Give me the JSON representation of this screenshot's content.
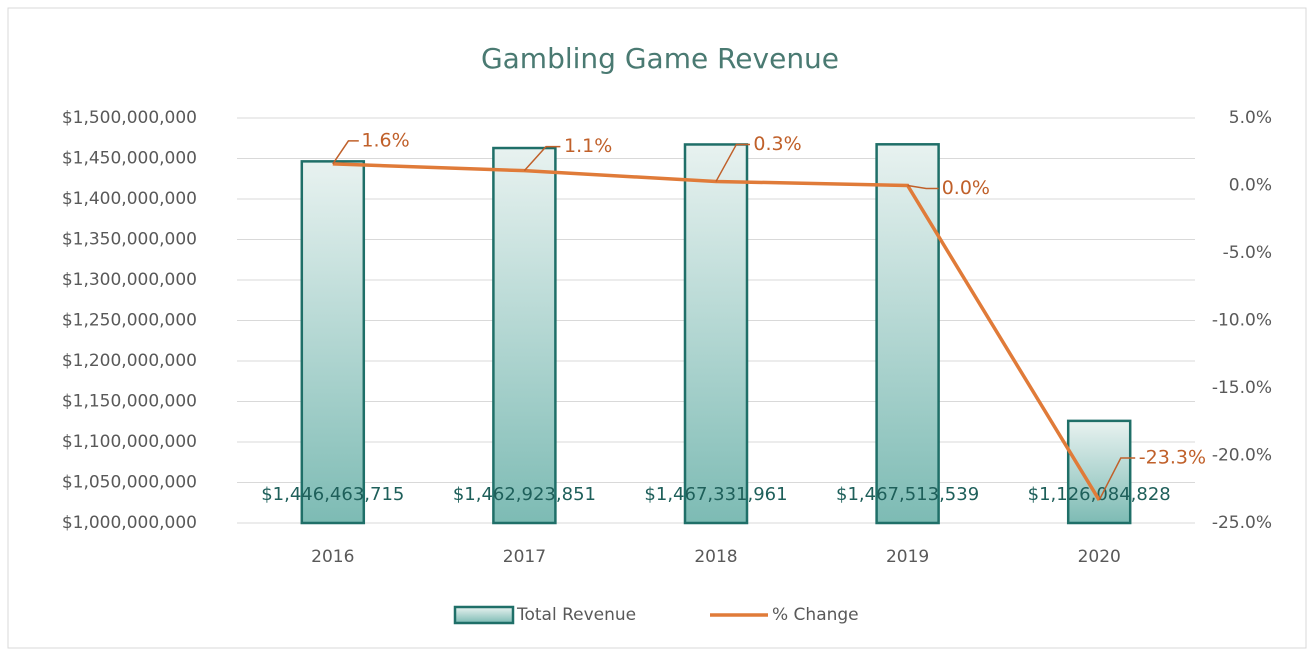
{
  "chart_data": {
    "type": "bar",
    "title": "Gambling Game Revenue",
    "categories": [
      "2016",
      "2017",
      "2018",
      "2019",
      "2020"
    ],
    "series": [
      {
        "name": "Total Revenue",
        "type": "bar",
        "color": "#1f6f68",
        "values": [
          1446463715,
          1462923851,
          1467331961,
          1467513539,
          1126084828
        ],
        "value_labels": [
          "$1,446,463,715",
          "$1,462,923,851",
          "$1,467,331,961",
          "$1,467,513,539",
          "$1,126,084,828"
        ]
      },
      {
        "name": "% Change",
        "type": "line",
        "axis": "y2",
        "color": "#e07b39",
        "values": [
          1.6,
          1.1,
          0.3,
          0.0,
          -23.3
        ],
        "value_labels": [
          "1.6%",
          "1.1%",
          "0.3%",
          "0.0%",
          "-23.3%"
        ]
      }
    ],
    "ylim": [
      1000000000,
      1500000000
    ],
    "yticks": [
      {
        "value": 1000000000,
        "label": "$1,000,000,000"
      },
      {
        "value": 1050000000,
        "label": "$1,050,000,000"
      },
      {
        "value": 1100000000,
        "label": "$1,100,000,000"
      },
      {
        "value": 1150000000,
        "label": "$1,150,000,000"
      },
      {
        "value": 1200000000,
        "label": "$1,200,000,000"
      },
      {
        "value": 1250000000,
        "label": "$1,250,000,000"
      },
      {
        "value": 1300000000,
        "label": "$1,300,000,000"
      },
      {
        "value": 1350000000,
        "label": "$1,350,000,000"
      },
      {
        "value": 1400000000,
        "label": "$1,400,000,000"
      },
      {
        "value": 1450000000,
        "label": "$1,450,000,000"
      },
      {
        "value": 1500000000,
        "label": "$1,500,000,000"
      }
    ],
    "y2lim": [
      -25,
      5
    ],
    "y2ticks": [
      {
        "value": -25,
        "label": "-25.0%"
      },
      {
        "value": -20,
        "label": "-20.0%"
      },
      {
        "value": -15,
        "label": "-15.0%"
      },
      {
        "value": -10,
        "label": "-10.0%"
      },
      {
        "value": -5,
        "label": "-5.0%"
      },
      {
        "value": 0,
        "label": "0.0%"
      },
      {
        "value": 5,
        "label": "5.0%"
      }
    ],
    "grid": true,
    "legend": "bottom"
  }
}
